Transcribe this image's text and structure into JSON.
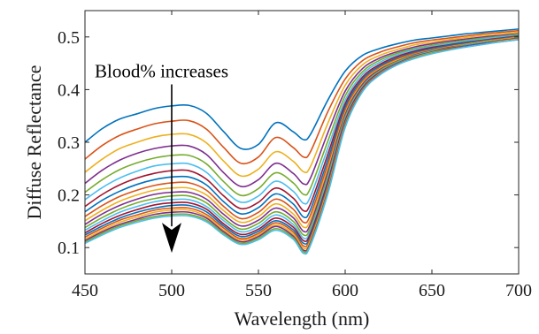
{
  "chart_data": {
    "type": "line",
    "title": "",
    "xlabel": "Wavelength (nm)",
    "ylabel": "Diffuse Reflectance",
    "xlim": [
      450,
      700
    ],
    "ylim": [
      0.05,
      0.55
    ],
    "xticks": [
      450,
      500,
      550,
      600,
      650,
      700
    ],
    "yticks": [
      0.1,
      0.2,
      0.3,
      0.4,
      0.5
    ],
    "grid": false,
    "legend": "none",
    "x": [
      450,
      460,
      470,
      480,
      490,
      500,
      510,
      520,
      530,
      540,
      550,
      560,
      570,
      576,
      580,
      590,
      600,
      610,
      620,
      630,
      640,
      650,
      660,
      670,
      680,
      690,
      700
    ],
    "series": [
      {
        "values": [
          0.3,
          0.326,
          0.344,
          0.354,
          0.364,
          0.369,
          0.37,
          0.355,
          0.32,
          0.288,
          0.296,
          0.337,
          0.32,
          0.305,
          0.315,
          0.38,
          0.435,
          0.465,
          0.478,
          0.487,
          0.494,
          0.498,
          0.502,
          0.506,
          0.509,
          0.512,
          0.515
        ]
      },
      {
        "values": [
          0.268,
          0.294,
          0.313,
          0.325,
          0.335,
          0.34,
          0.341,
          0.325,
          0.29,
          0.26,
          0.272,
          0.309,
          0.29,
          0.272,
          0.282,
          0.358,
          0.42,
          0.455,
          0.471,
          0.481,
          0.489,
          0.494,
          0.498,
          0.502,
          0.506,
          0.509,
          0.512
        ]
      },
      {
        "values": [
          0.243,
          0.268,
          0.288,
          0.3,
          0.31,
          0.315,
          0.315,
          0.299,
          0.264,
          0.236,
          0.249,
          0.282,
          0.264,
          0.244,
          0.254,
          0.336,
          0.408,
          0.447,
          0.465,
          0.476,
          0.485,
          0.49,
          0.495,
          0.499,
          0.503,
          0.506,
          0.509
        ]
      },
      {
        "values": [
          0.222,
          0.247,
          0.266,
          0.279,
          0.288,
          0.293,
          0.293,
          0.277,
          0.242,
          0.216,
          0.229,
          0.26,
          0.241,
          0.221,
          0.232,
          0.318,
          0.397,
          0.44,
          0.46,
          0.472,
          0.481,
          0.487,
          0.492,
          0.496,
          0.5,
          0.503,
          0.506
        ]
      },
      {
        "values": [
          0.205,
          0.229,
          0.248,
          0.261,
          0.27,
          0.275,
          0.275,
          0.259,
          0.225,
          0.199,
          0.212,
          0.242,
          0.223,
          0.201,
          0.213,
          0.302,
          0.388,
          0.434,
          0.456,
          0.469,
          0.478,
          0.484,
          0.489,
          0.494,
          0.498,
          0.501,
          0.505
        ]
      },
      {
        "values": [
          0.191,
          0.214,
          0.232,
          0.245,
          0.255,
          0.259,
          0.259,
          0.243,
          0.21,
          0.186,
          0.198,
          0.226,
          0.207,
          0.184,
          0.197,
          0.289,
          0.38,
          0.429,
          0.452,
          0.466,
          0.476,
          0.482,
          0.487,
          0.492,
          0.496,
          0.5,
          0.503
        ]
      },
      {
        "values": [
          0.178,
          0.201,
          0.219,
          0.232,
          0.241,
          0.246,
          0.246,
          0.23,
          0.198,
          0.174,
          0.186,
          0.213,
          0.194,
          0.17,
          0.183,
          0.277,
          0.373,
          0.424,
          0.448,
          0.463,
          0.473,
          0.48,
          0.485,
          0.49,
          0.494,
          0.498,
          0.502
        ]
      },
      {
        "values": [
          0.168,
          0.19,
          0.207,
          0.22,
          0.229,
          0.234,
          0.234,
          0.219,
          0.187,
          0.164,
          0.176,
          0.202,
          0.183,
          0.158,
          0.172,
          0.267,
          0.367,
          0.42,
          0.445,
          0.46,
          0.471,
          0.478,
          0.484,
          0.489,
          0.493,
          0.497,
          0.501
        ]
      },
      {
        "values": [
          0.159,
          0.18,
          0.197,
          0.209,
          0.218,
          0.223,
          0.223,
          0.209,
          0.178,
          0.155,
          0.167,
          0.192,
          0.173,
          0.148,
          0.162,
          0.258,
          0.361,
          0.416,
          0.442,
          0.458,
          0.469,
          0.476,
          0.482,
          0.487,
          0.492,
          0.496,
          0.5
        ]
      },
      {
        "values": [
          0.151,
          0.171,
          0.188,
          0.2,
          0.209,
          0.213,
          0.213,
          0.2,
          0.17,
          0.148,
          0.159,
          0.183,
          0.164,
          0.139,
          0.153,
          0.25,
          0.356,
          0.413,
          0.44,
          0.456,
          0.467,
          0.475,
          0.481,
          0.486,
          0.491,
          0.495,
          0.499
        ]
      },
      {
        "values": [
          0.144,
          0.164,
          0.18,
          0.192,
          0.201,
          0.205,
          0.205,
          0.192,
          0.163,
          0.141,
          0.152,
          0.175,
          0.157,
          0.131,
          0.145,
          0.243,
          0.352,
          0.41,
          0.438,
          0.454,
          0.466,
          0.474,
          0.48,
          0.485,
          0.49,
          0.494,
          0.498
        ]
      },
      {
        "values": [
          0.138,
          0.157,
          0.173,
          0.185,
          0.193,
          0.198,
          0.198,
          0.185,
          0.156,
          0.135,
          0.146,
          0.168,
          0.15,
          0.124,
          0.138,
          0.236,
          0.348,
          0.407,
          0.436,
          0.453,
          0.465,
          0.473,
          0.479,
          0.485,
          0.49,
          0.494,
          0.498
        ]
      },
      {
        "values": [
          0.133,
          0.151,
          0.167,
          0.178,
          0.187,
          0.191,
          0.191,
          0.178,
          0.151,
          0.13,
          0.14,
          0.162,
          0.144,
          0.118,
          0.132,
          0.23,
          0.344,
          0.405,
          0.434,
          0.451,
          0.464,
          0.472,
          0.478,
          0.484,
          0.489,
          0.493,
          0.497
        ]
      },
      {
        "values": [
          0.128,
          0.146,
          0.161,
          0.172,
          0.181,
          0.185,
          0.185,
          0.173,
          0.145,
          0.125,
          0.135,
          0.156,
          0.139,
          0.113,
          0.127,
          0.225,
          0.341,
          0.403,
          0.433,
          0.45,
          0.463,
          0.471,
          0.478,
          0.483,
          0.488,
          0.493,
          0.497
        ]
      },
      {
        "values": [
          0.124,
          0.141,
          0.156,
          0.167,
          0.175,
          0.18,
          0.18,
          0.168,
          0.141,
          0.121,
          0.131,
          0.151,
          0.134,
          0.108,
          0.122,
          0.22,
          0.338,
          0.401,
          0.432,
          0.45,
          0.462,
          0.471,
          0.477,
          0.483,
          0.488,
          0.492,
          0.496
        ]
      },
      {
        "values": [
          0.12,
          0.137,
          0.152,
          0.162,
          0.171,
          0.175,
          0.175,
          0.163,
          0.137,
          0.117,
          0.127,
          0.147,
          0.13,
          0.103,
          0.118,
          0.216,
          0.336,
          0.4,
          0.431,
          0.449,
          0.461,
          0.47,
          0.477,
          0.482,
          0.487,
          0.492,
          0.496
        ]
      },
      {
        "values": [
          0.116,
          0.133,
          0.148,
          0.158,
          0.167,
          0.171,
          0.171,
          0.159,
          0.133,
          0.114,
          0.124,
          0.143,
          0.126,
          0.099,
          0.114,
          0.212,
          0.334,
          0.399,
          0.43,
          0.448,
          0.461,
          0.47,
          0.476,
          0.482,
          0.487,
          0.492,
          0.496
        ]
      },
      {
        "values": [
          0.113,
          0.13,
          0.144,
          0.154,
          0.163,
          0.167,
          0.167,
          0.156,
          0.13,
          0.111,
          0.121,
          0.14,
          0.122,
          0.095,
          0.11,
          0.208,
          0.332,
          0.398,
          0.429,
          0.448,
          0.46,
          0.469,
          0.476,
          0.482,
          0.487,
          0.491,
          0.495
        ]
      },
      {
        "values": [
          0.11,
          0.127,
          0.141,
          0.151,
          0.159,
          0.163,
          0.163,
          0.152,
          0.127,
          0.108,
          0.118,
          0.136,
          0.119,
          0.092,
          0.107,
          0.205,
          0.33,
          0.397,
          0.428,
          0.447,
          0.46,
          0.469,
          0.476,
          0.481,
          0.486,
          0.491,
          0.495
        ]
      },
      {
        "values": [
          0.108,
          0.124,
          0.138,
          0.148,
          0.156,
          0.16,
          0.16,
          0.149,
          0.124,
          0.106,
          0.115,
          0.133,
          0.116,
          0.089,
          0.104,
          0.202,
          0.328,
          0.396,
          0.428,
          0.447,
          0.459,
          0.468,
          0.475,
          0.481,
          0.486,
          0.491,
          0.495
        ]
      }
    ],
    "colors": [
      "#0072BD",
      "#D95319",
      "#EDB120",
      "#7E2F8E",
      "#77AC30",
      "#4DBEEE",
      "#A2142F",
      "#0072BD",
      "#D95319",
      "#EDB120",
      "#7E2F8E",
      "#77AC30",
      "#4DBEEE",
      "#A2142F",
      "#0072BD",
      "#D95319",
      "#EDB120",
      "#7E2F8E",
      "#77AC30",
      "#4DBEEE"
    ],
    "annotation": {
      "text": "Blood% increases",
      "arrow_from": [
        500,
        0.41
      ],
      "arrow_to": [
        500,
        0.09
      ]
    }
  }
}
